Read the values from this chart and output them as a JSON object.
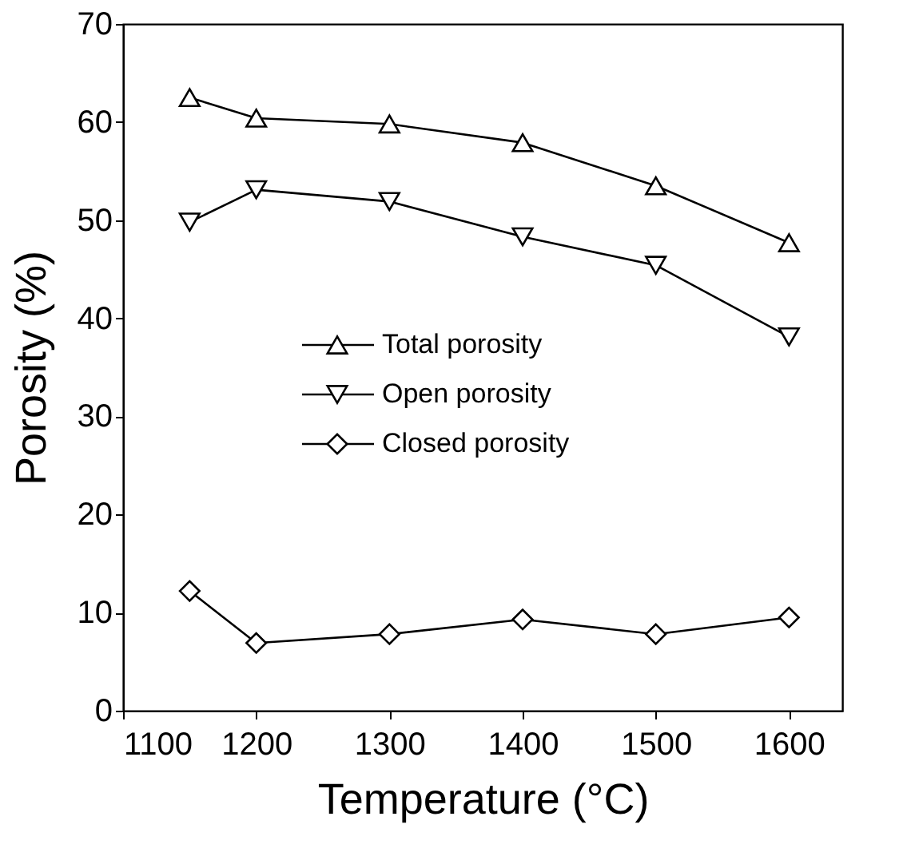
{
  "chart_data": {
    "type": "line",
    "xlabel": "Temperature (°C)",
    "ylabel": "Porosity (%)",
    "x": [
      1150,
      1200,
      1300,
      1400,
      1500,
      1600
    ],
    "xlim": [
      1100,
      1640
    ],
    "xticks": [
      1100,
      1200,
      1300,
      1400,
      1500,
      1600
    ],
    "ylim": [
      0,
      70
    ],
    "yticks": [
      0,
      10,
      20,
      30,
      40,
      50,
      60,
      70
    ],
    "grid": false,
    "legend": "center",
    "line_style": "solid",
    "series": [
      {
        "name": "Total porosity",
        "color": "#000000",
        "marker": "triangle",
        "values": [
          62.5,
          60.4,
          59.8,
          57.9,
          53.5,
          47.7
        ]
      },
      {
        "name": "Open porosity",
        "color": "#000000",
        "marker": "triangle-down",
        "values": [
          49.8,
          53.1,
          51.9,
          48.3,
          45.4,
          38.1
        ]
      },
      {
        "name": "Closed porosity",
        "color": "#000000",
        "marker": "diamond",
        "values": [
          12.2,
          6.9,
          7.8,
          9.3,
          7.8,
          9.5
        ]
      }
    ]
  }
}
